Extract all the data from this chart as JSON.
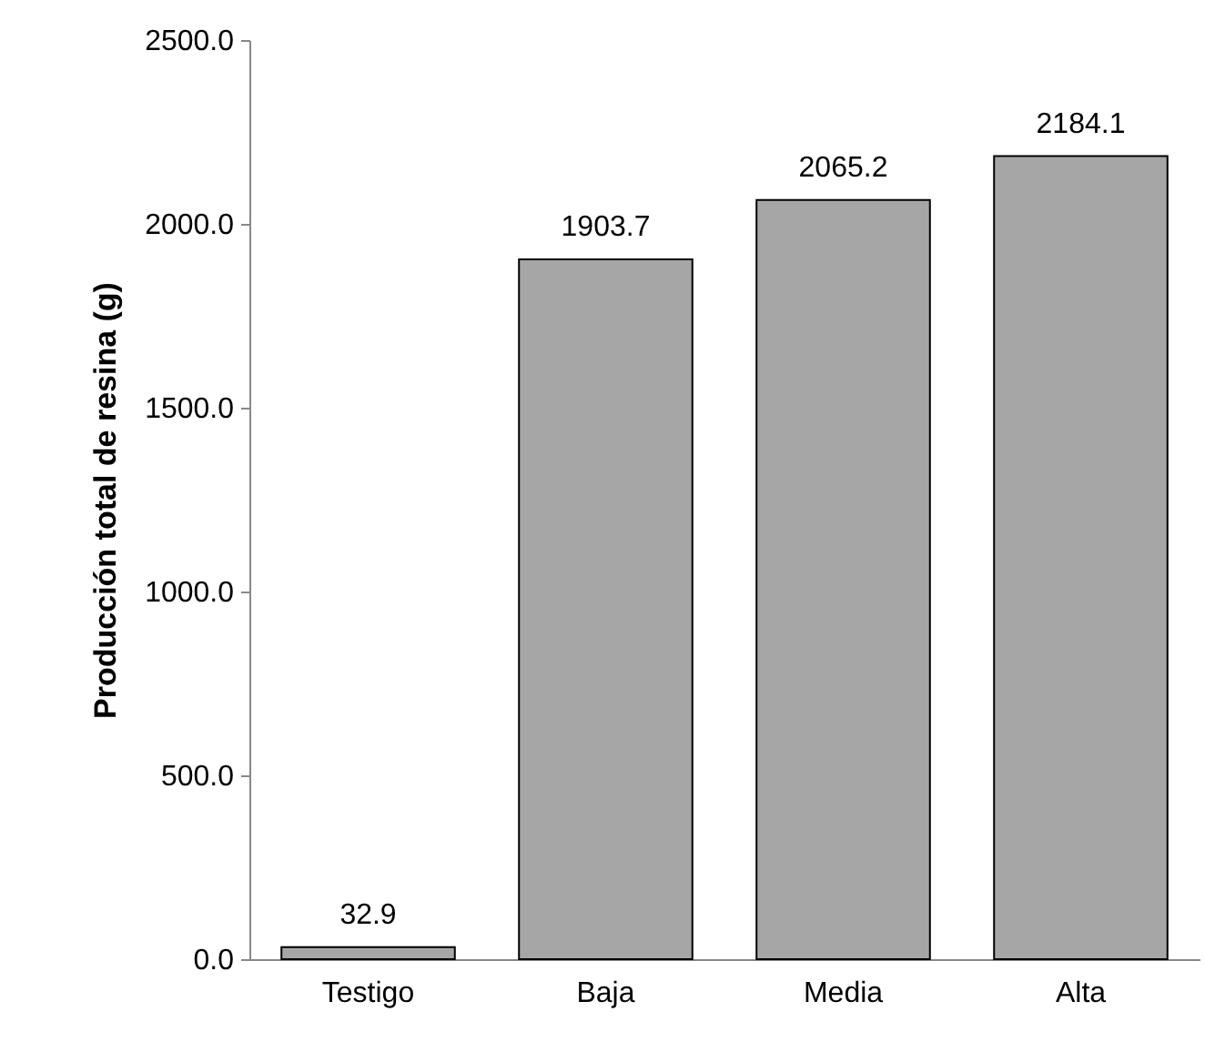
{
  "chart_data": {
    "type": "bar",
    "ylabel": "Producción total de resina (g)",
    "categories": [
      "Testigo",
      "Baja",
      "Media",
      "Alta"
    ],
    "values": [
      32.9,
      1903.7,
      2065.2,
      2184.1
    ],
    "color": "#a6a6a6",
    "ylim": [
      0,
      2500
    ],
    "yticks": [
      {
        "value": 0,
        "label": "0.0"
      },
      {
        "value": 500,
        "label": "500.0"
      },
      {
        "value": 1000,
        "label": "1000.0"
      },
      {
        "value": 1500,
        "label": "1500.0"
      },
      {
        "value": 2000,
        "label": "2000.0"
      },
      {
        "value": 2500,
        "label": "2500.0"
      }
    ],
    "data_labels": true
  }
}
